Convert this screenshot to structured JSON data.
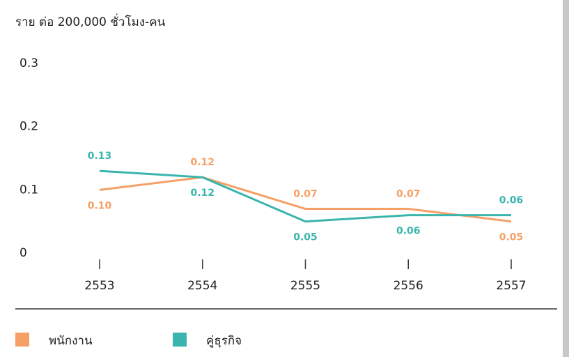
{
  "chart_data": {
    "type": "line",
    "y_label": "ราย ต่อ 200,000 ชั่วโมง-คน",
    "categories": [
      "2553",
      "2554",
      "2555",
      "2556",
      "2557"
    ],
    "series": [
      {
        "name": "พนักงาน",
        "color": "#f5a066",
        "values": [
          0.1,
          0.12,
          0.07,
          0.07,
          0.05
        ],
        "value_labels": [
          "0.10",
          "0.12",
          "0.07",
          "0.07",
          "0.05"
        ]
      },
      {
        "name": "คู่ธุรกิจ",
        "color": "#3ab5ad",
        "values": [
          0.13,
          0.12,
          0.05,
          0.06,
          0.06
        ],
        "value_labels": [
          "0.13",
          "0.12",
          "0.05",
          "0.06",
          "0.06"
        ]
      }
    ],
    "ylim": [
      0,
      0.3
    ],
    "yticks": [
      0,
      0.1,
      0.2,
      0.3
    ],
    "grid": false
  }
}
